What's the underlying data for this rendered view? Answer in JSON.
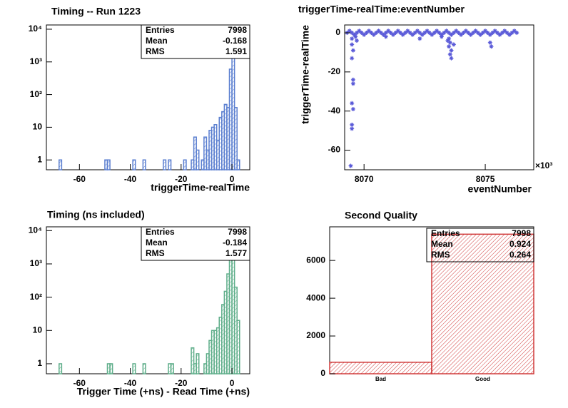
{
  "chart_data": [
    {
      "type": "histogram",
      "title": "Timing -- Run 1223",
      "x_label": "triggerTime-realTime",
      "color": "#5b7fd0",
      "bins": [
        -70,
        -69,
        -68,
        -67,
        -66,
        -65,
        -64,
        -63,
        -62,
        -61,
        -60,
        -59,
        -58,
        -57,
        -56,
        -55,
        -54,
        -53,
        -52,
        -51,
        -50,
        -49,
        -48,
        -47,
        -46,
        -45,
        -44,
        -43,
        -42,
        -41,
        -40,
        -39,
        -38,
        -37,
        -36,
        -35,
        -34,
        -33,
        -32,
        -31,
        -30,
        -29,
        -28,
        -27,
        -26,
        -25,
        -24,
        -23,
        -22,
        -21,
        -20,
        -19,
        -18,
        -17,
        -16,
        -15,
        -14,
        -13,
        -12,
        -11,
        -10,
        -9,
        -8,
        -7,
        -6,
        -5,
        -4,
        -3,
        -2,
        -1,
        0,
        1,
        2,
        3,
        4,
        5
      ],
      "values": [
        0,
        0,
        1,
        0,
        0,
        0,
        0,
        0,
        0,
        0,
        0,
        0,
        0,
        0,
        0,
        0,
        0,
        0,
        0,
        0,
        1,
        1,
        0,
        0,
        0,
        0,
        0,
        0,
        0,
        0,
        0,
        1,
        0,
        0,
        0,
        1,
        0,
        0,
        0,
        0,
        0,
        0,
        0,
        1,
        0,
        1,
        0,
        0,
        0,
        0,
        0,
        1,
        0,
        0,
        1,
        5,
        2,
        0,
        1,
        5,
        2,
        8,
        10,
        12,
        4,
        20,
        30,
        50,
        40,
        600,
        7000,
        40,
        1,
        0,
        0
      ],
      "xlim": [
        -73,
        7
      ],
      "xticks": [
        -60,
        -40,
        -20,
        0
      ],
      "log_y": true,
      "ylim": [
        0.5,
        13500
      ],
      "yticks": [
        1,
        10,
        {
          "value": 100,
          "label": "10²"
        },
        {
          "value": 1000,
          "label": "10³"
        },
        {
          "value": 10000,
          "label": "10⁴"
        }
      ],
      "stats": [
        {
          "label": "Entries",
          "value": 7998
        },
        {
          "label": "Mean",
          "value": -0.168
        },
        {
          "label": "RMS",
          "value": 1.591
        }
      ]
    },
    {
      "type": "scatter",
      "title": "triggerTime-realTime:eventNumber",
      "x_label": "eventNumber",
      "y_label": "triggerTime-realTime",
      "color": "#5a5ad8",
      "axis_exponent_label": "×10³",
      "x": [
        8069300,
        8069400,
        8069500,
        8069600,
        8069700,
        8069800,
        8069900,
        8070000,
        8070100,
        8070200,
        8070300,
        8070400,
        8070500,
        8070600,
        8070700,
        8070800,
        8070900,
        8071000,
        8071100,
        8071200,
        8071300,
        8071400,
        8071500,
        8071600,
        8071700,
        8071800,
        8071900,
        8072000,
        8072100,
        8072200,
        8072300,
        8072400,
        8072500,
        8072600,
        8072700,
        8072800,
        8072900,
        8073000,
        8073100,
        8073200,
        8073300,
        8073400,
        8073500,
        8073600,
        8073700,
        8073800,
        8073900,
        8074000,
        8074100,
        8074200,
        8074300,
        8074400,
        8074500,
        8074600,
        8074700,
        8074800,
        8074900,
        8075000,
        8075100,
        8075200,
        8075300,
        8075400,
        8075500,
        8075600,
        8075700,
        8075800,
        8075900,
        8076000,
        8076100,
        8076200,
        8076300,
        8069500,
        8069500,
        8069550,
        8069500,
        8069550,
        8069550,
        8069500,
        8069550,
        8069500,
        8069500,
        8069450,
        8069650,
        8069700,
        8073500,
        8073550,
        8073500,
        8073600,
        8073550,
        8073600,
        8073450,
        8073700,
        8073200,
        8075200,
        8075250,
        8072300,
        8070900
      ],
      "y": [
        0,
        1,
        0,
        -1,
        0,
        1,
        0,
        -1,
        0,
        1,
        0,
        -1,
        0,
        1,
        0,
        -1,
        0,
        1,
        0,
        -1,
        0,
        1,
        0,
        -1,
        0,
        1,
        0,
        -1,
        0,
        1,
        0,
        -1,
        0,
        1,
        0,
        -1,
        0,
        1,
        0,
        -1,
        0,
        1,
        0,
        -1,
        0,
        1,
        0,
        -1,
        0,
        1,
        0,
        -1,
        0,
        1,
        0,
        -1,
        0,
        1,
        0,
        -1,
        0,
        1,
        0,
        -1,
        0,
        1,
        0,
        -1,
        0,
        1,
        0,
        -3,
        -6,
        -9,
        -13,
        -24,
        -26,
        -36,
        -39,
        -47,
        -49,
        -68,
        -2,
        -4,
        -3,
        -5,
        -7,
        -9,
        -11,
        -13,
        -4,
        -6,
        -2,
        -5,
        -7,
        -3,
        -2
      ],
      "xlim": [
        8069200,
        8077000
      ],
      "xticks": [
        {
          "value": 8070000,
          "label": "8070"
        },
        {
          "value": 8075000,
          "label": "8075"
        }
      ],
      "ylim": [
        -70,
        4
      ],
      "yticks": [
        0,
        -20,
        -40,
        -60
      ]
    },
    {
      "type": "histogram",
      "title": "Timing (ns included)",
      "x_label": "Trigger Time (+ns) - Read Time (+ns)",
      "color": "#5fae8a",
      "bins": [
        -70,
        -69,
        -68,
        -67,
        -66,
        -65,
        -64,
        -63,
        -62,
        -61,
        -60,
        -59,
        -58,
        -57,
        -56,
        -55,
        -54,
        -53,
        -52,
        -51,
        -50,
        -49,
        -48,
        -47,
        -46,
        -45,
        -44,
        -43,
        -42,
        -41,
        -40,
        -39,
        -38,
        -37,
        -36,
        -35,
        -34,
        -33,
        -32,
        -31,
        -30,
        -29,
        -28,
        -27,
        -26,
        -25,
        -24,
        -23,
        -22,
        -21,
        -20,
        -19,
        -18,
        -17,
        -16,
        -15,
        -14,
        -13,
        -12,
        -11,
        -10,
        -9,
        -8,
        -7,
        -6,
        -5,
        -4,
        -3,
        -2,
        -1,
        0,
        1,
        2,
        3,
        4,
        5
      ],
      "values": [
        0,
        0,
        1,
        0,
        0,
        0,
        0,
        0,
        0,
        0,
        0,
        0,
        0,
        0,
        0,
        0,
        0,
        0,
        0,
        0,
        0,
        1,
        1,
        0,
        0,
        0,
        0,
        0,
        0,
        0,
        0,
        1,
        0,
        0,
        0,
        1,
        0,
        0,
        0,
        0,
        0,
        0,
        0,
        0,
        0,
        1,
        1,
        0,
        0,
        0,
        0,
        0,
        0,
        0,
        3,
        1,
        2,
        0,
        0,
        1,
        2,
        5,
        10,
        10,
        12,
        25,
        60,
        150,
        500,
        1500,
        5500,
        200,
        20,
        0,
        0
      ],
      "xlim": [
        -73,
        7
      ],
      "xticks": [
        -60,
        -40,
        -20,
        0
      ],
      "log_y": true,
      "ylim": [
        0.5,
        13000
      ],
      "yticks": [
        1,
        10,
        {
          "value": 100,
          "label": "10²"
        },
        {
          "value": 1000,
          "label": "10³"
        },
        {
          "value": 10000,
          "label": "10⁴"
        }
      ],
      "stats": [
        {
          "label": "Entries",
          "value": 7998
        },
        {
          "label": "Mean",
          "value": -0.184
        },
        {
          "label": "RMS",
          "value": 1.577
        }
      ]
    },
    {
      "type": "bar",
      "title": "Second Quality",
      "color": "#d03a3a",
      "categories": [
        "Bad",
        "Good"
      ],
      "values": [
        608,
        7390
      ],
      "ylim": [
        0,
        7780
      ],
      "yticks": [
        0,
        2000,
        4000,
        6000
      ],
      "stats": [
        {
          "label": "Entries",
          "value": 7998
        },
        {
          "label": "Mean",
          "value": 0.924
        },
        {
          "label": "RMS",
          "value": 0.264
        }
      ]
    }
  ]
}
